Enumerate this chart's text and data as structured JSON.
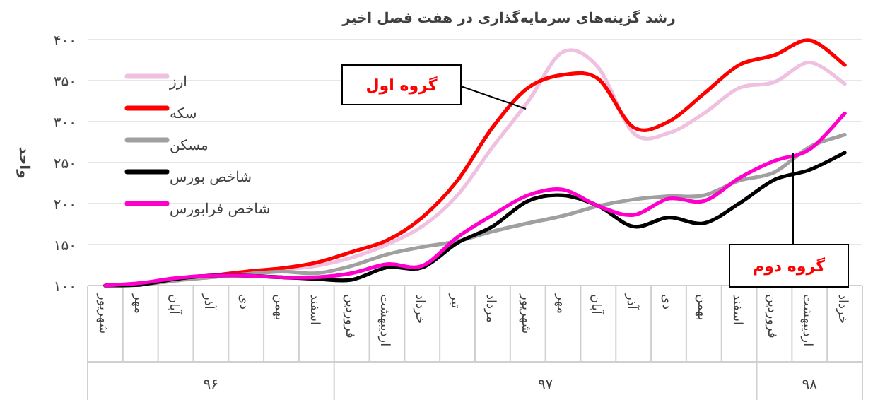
{
  "chart_data": {
    "type": "line",
    "title": "رشد گزینه‌های سرمایه‌گذاری  در هفت فصل اخیر",
    "ylabel": "واحد",
    "categories": [
      "شهریور",
      "مهر",
      "آبان",
      "آذر",
      "دی",
      "بهمن",
      "اسفند",
      "فروردین",
      "اردیبهشت",
      "خرداد",
      "تیر",
      "مرداد",
      "شهریور",
      "مهر",
      "آبان",
      "آذر",
      "دی",
      "بهمن",
      "اسفند",
      "فروردین",
      "اردیبهشت",
      "خرداد"
    ],
    "series": [
      {
        "name": "ارز",
        "color": "#f0c0e0",
        "values": [
          100,
          103,
          107,
          110,
          114,
          119,
          124,
          134,
          150,
          172,
          210,
          269,
          324,
          385,
          366,
          286,
          286,
          310,
          341,
          348,
          372,
          346
        ]
      },
      {
        "name": "سکه",
        "color": "#ff0000",
        "values": [
          null,
          null,
          109,
          112,
          117,
          121,
          128,
          141,
          155,
          183,
          228,
          293,
          341,
          357,
          352,
          293,
          300,
          334,
          369,
          381,
          399,
          369
        ]
      },
      {
        "name": "مسکن",
        "color": "#a0a0a0",
        "values": [
          100,
          101,
          106,
          110,
          114,
          117,
          115,
          124,
          138,
          147,
          154,
          166,
          176,
          185,
          197,
          205,
          209,
          210,
          228,
          238,
          269,
          284
        ]
      },
      {
        "name": "شاخص بورس",
        "color": "#000000",
        "values": [
          100,
          101,
          108,
          112,
          112,
          110,
          108,
          107,
          122,
          122,
          152,
          172,
          203,
          210,
          197,
          172,
          183,
          176,
          200,
          229,
          241,
          262
        ]
      },
      {
        "name": "شاخص فرابورس",
        "color": "#ff00cc",
        "values": [
          100,
          103,
          109,
          112,
          112,
          110,
          110,
          115,
          126,
          124,
          159,
          186,
          210,
          217,
          197,
          186,
          206,
          203,
          231,
          252,
          266,
          310
        ]
      }
    ],
    "ylim": [
      100,
      400
    ],
    "yticks": [
      {
        "value": 100,
        "label": "۱۰۰"
      },
      {
        "value": 150,
        "label": "۱۵۰"
      },
      {
        "value": 200,
        "label": "۲۰۰"
      },
      {
        "value": 250,
        "label": "۲۵۰"
      },
      {
        "value": 300,
        "label": "۳۰۰"
      },
      {
        "value": 350,
        "label": "۳۵۰"
      },
      {
        "value": 400,
        "label": "۴۰۰"
      }
    ],
    "grid": "y",
    "legend": "top left",
    "annotations": [
      "۹۶",
      "۹۷",
      "۹۸",
      "گروه اول",
      {
        "text": "گروه دوم",
        "y": 262
      }
    ]
  }
}
